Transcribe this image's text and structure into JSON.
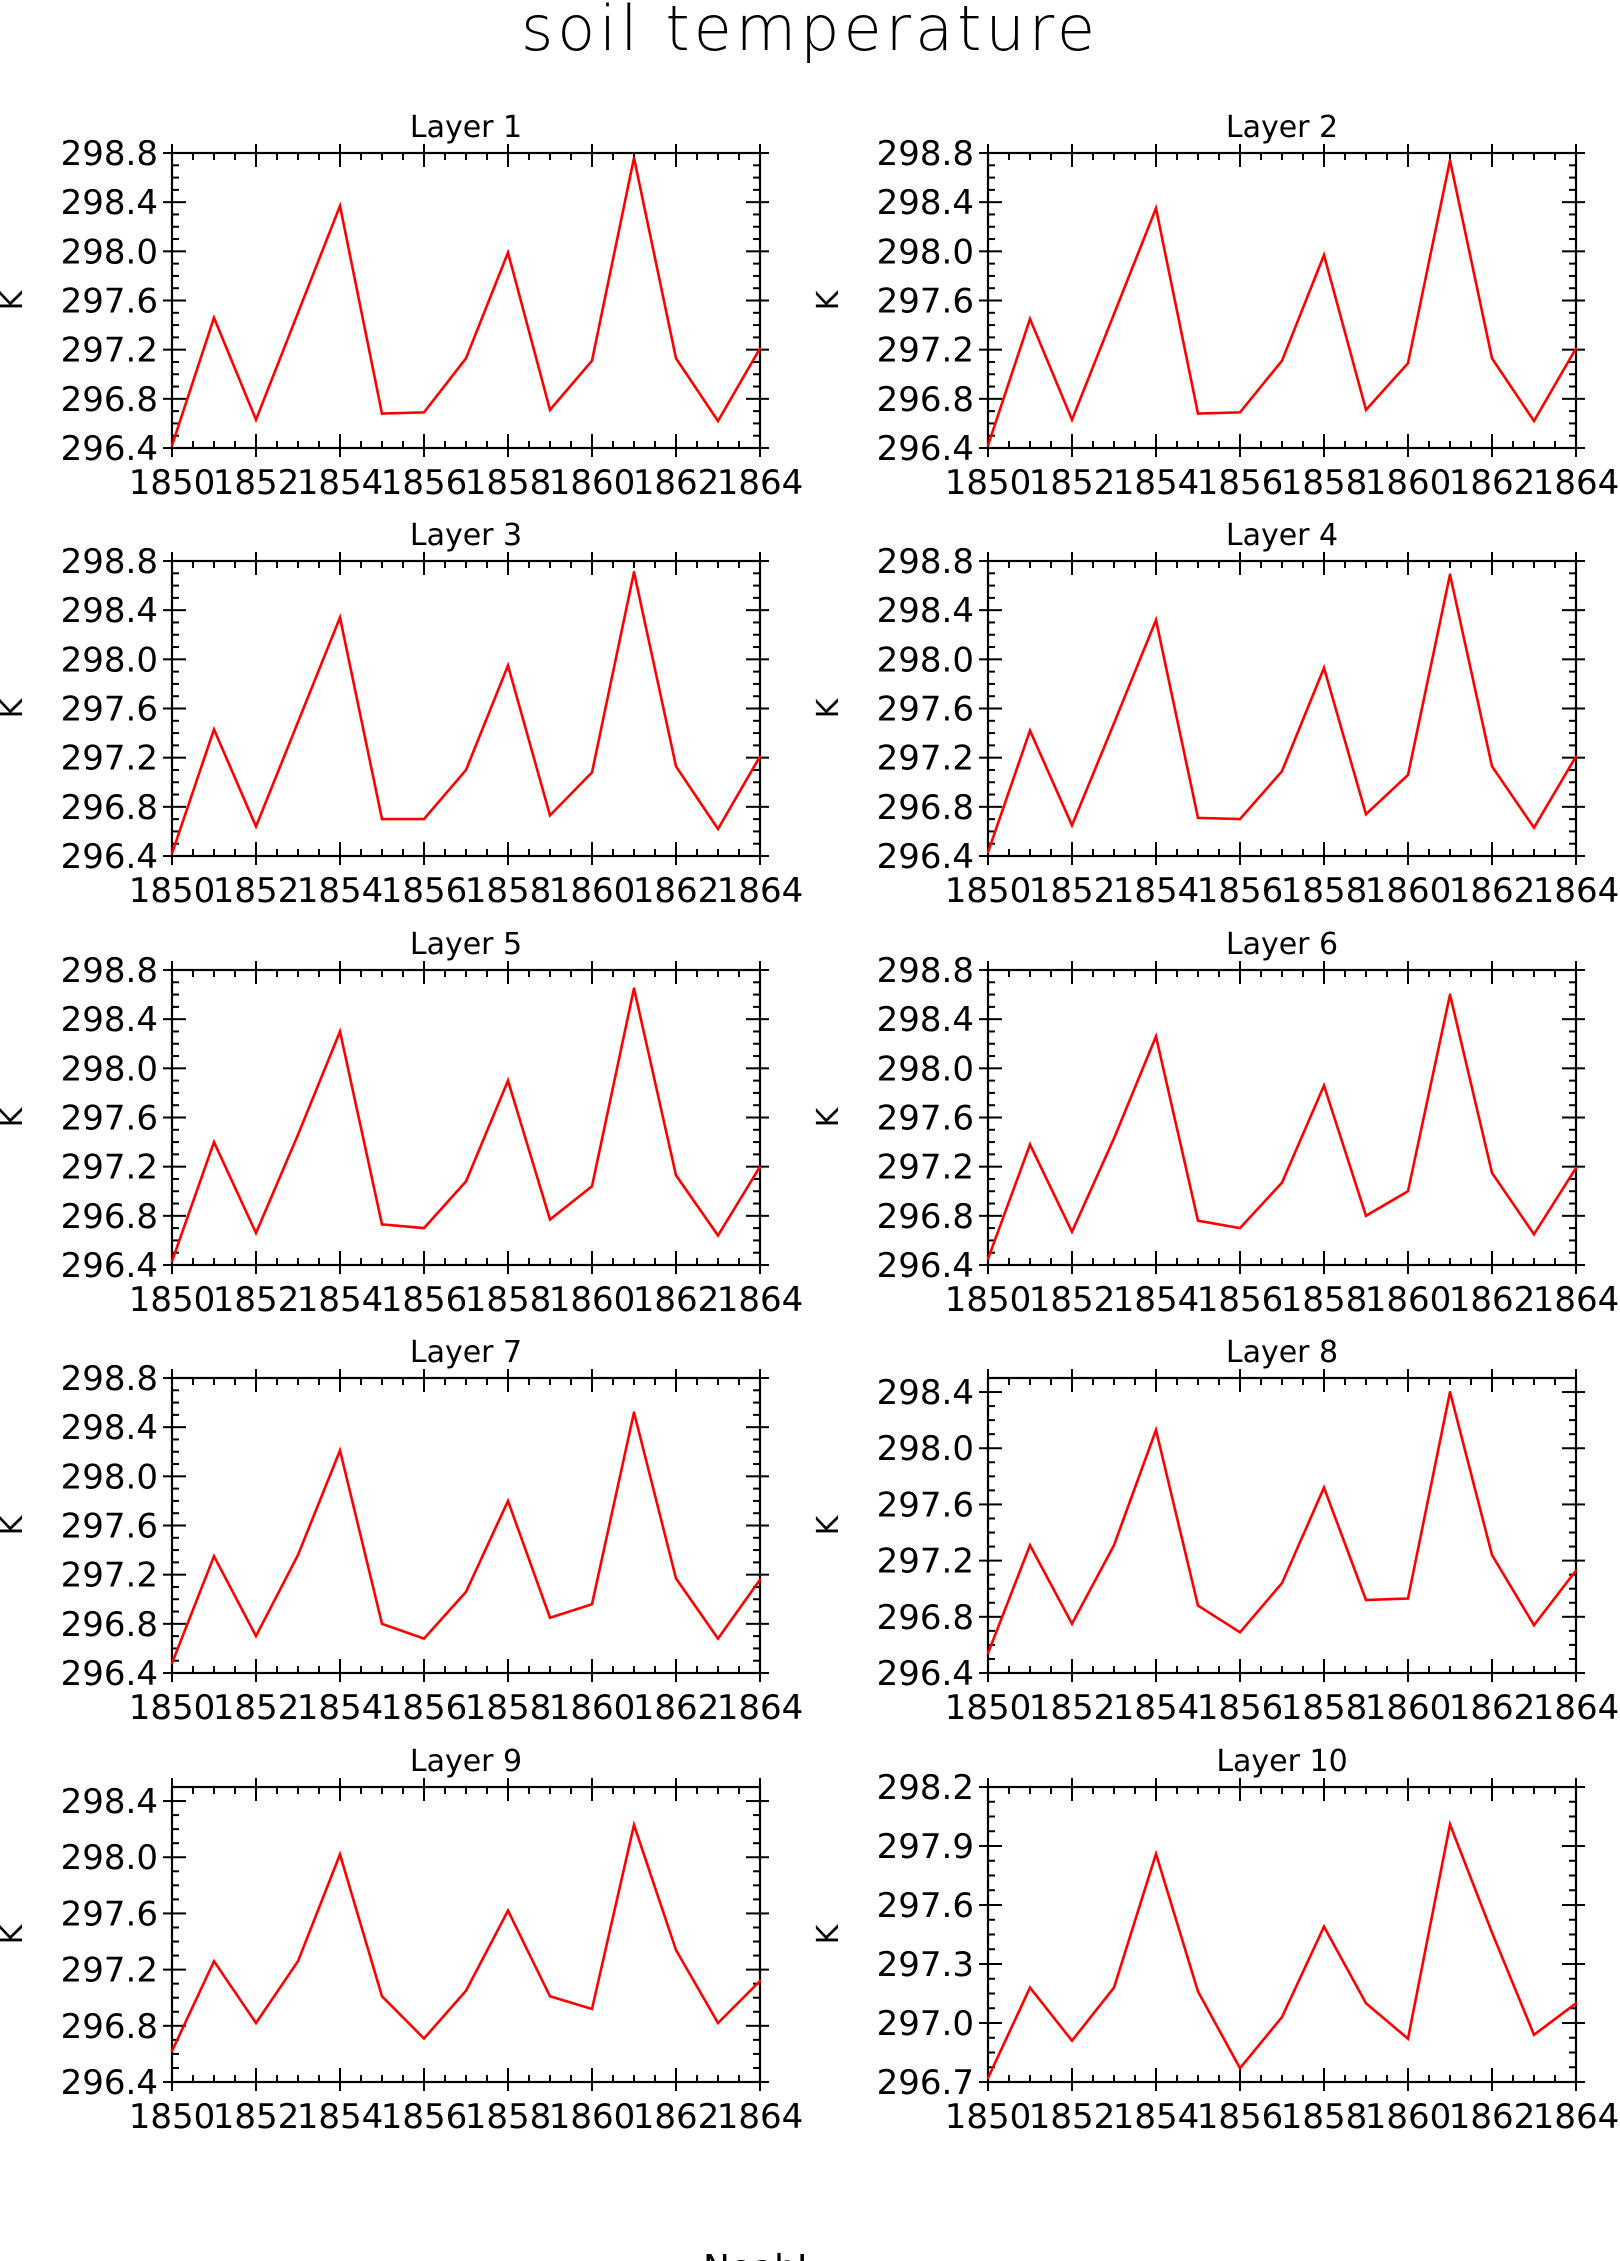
{
  "figure": {
    "title": "soil temperature",
    "footer": "NoahL",
    "line_color": "#ff0000"
  },
  "chart_data": [
    {
      "type": "line",
      "title": "Layer 1",
      "ylabel": "K",
      "xlabel": "",
      "x_tick_labels": [
        "1850",
        "1852",
        "1854",
        "1856",
        "1858",
        "1860",
        "1862",
        "1864"
      ],
      "y_tick_labels": [
        "296.4",
        "296.8",
        "297.2",
        "297.6",
        "298.0",
        "298.4",
        "298.8"
      ],
      "xlim": [
        1850,
        1864
      ],
      "ylim": [
        296.4,
        298.8
      ],
      "grid": false,
      "series": [
        {
          "x": [
            1850,
            1851,
            1852,
            1853,
            1854,
            1855,
            1856,
            1857,
            1858,
            1859,
            1860,
            1861,
            1862,
            1863,
            1864
          ],
          "y": [
            296.42,
            297.46,
            296.63,
            297.5,
            298.37,
            296.68,
            296.69,
            297.13,
            297.99,
            296.71,
            297.11,
            298.76,
            297.13,
            296.62,
            297.21
          ]
        }
      ]
    },
    {
      "type": "line",
      "title": "Layer 2",
      "ylabel": "K",
      "xlabel": "",
      "x_tick_labels": [
        "1850",
        "1852",
        "1854",
        "1856",
        "1858",
        "1860",
        "1862",
        "1864"
      ],
      "y_tick_labels": [
        "296.4",
        "296.8",
        "297.2",
        "297.6",
        "298.0",
        "298.4",
        "298.8"
      ],
      "xlim": [
        1850,
        1864
      ],
      "ylim": [
        296.4,
        298.8
      ],
      "grid": false,
      "series": [
        {
          "x": [
            1850,
            1851,
            1852,
            1853,
            1854,
            1855,
            1856,
            1857,
            1858,
            1859,
            1860,
            1861,
            1862,
            1863,
            1864
          ],
          "y": [
            296.42,
            297.45,
            296.63,
            297.49,
            298.35,
            296.68,
            296.69,
            297.11,
            297.97,
            296.71,
            297.09,
            298.74,
            297.13,
            296.62,
            297.21
          ]
        }
      ]
    },
    {
      "type": "line",
      "title": "Layer 3",
      "ylabel": "K",
      "xlabel": "",
      "x_tick_labels": [
        "1850",
        "1852",
        "1854",
        "1856",
        "1858",
        "1860",
        "1862",
        "1864"
      ],
      "y_tick_labels": [
        "296.4",
        "296.8",
        "297.2",
        "297.6",
        "298.0",
        "298.4",
        "298.8"
      ],
      "xlim": [
        1850,
        1864
      ],
      "ylim": [
        296.4,
        298.8
      ],
      "grid": false,
      "series": [
        {
          "x": [
            1850,
            1851,
            1852,
            1853,
            1854,
            1855,
            1856,
            1857,
            1858,
            1859,
            1860,
            1861,
            1862,
            1863,
            1864
          ],
          "y": [
            296.42,
            297.43,
            296.64,
            297.49,
            298.34,
            296.7,
            296.7,
            297.1,
            297.95,
            296.73,
            297.08,
            298.71,
            297.13,
            296.62,
            297.21
          ]
        }
      ]
    },
    {
      "type": "line",
      "title": "Layer 4",
      "ylabel": "K",
      "xlabel": "",
      "x_tick_labels": [
        "1850",
        "1852",
        "1854",
        "1856",
        "1858",
        "1860",
        "1862",
        "1864"
      ],
      "y_tick_labels": [
        "296.4",
        "296.8",
        "297.2",
        "297.6",
        "298.0",
        "298.4",
        "298.8"
      ],
      "xlim": [
        1850,
        1864
      ],
      "ylim": [
        296.4,
        298.8
      ],
      "grid": false,
      "series": [
        {
          "x": [
            1850,
            1851,
            1852,
            1853,
            1854,
            1855,
            1856,
            1857,
            1858,
            1859,
            1860,
            1861,
            1862,
            1863,
            1864
          ],
          "y": [
            296.43,
            297.42,
            296.65,
            297.48,
            298.32,
            296.71,
            296.7,
            297.09,
            297.93,
            296.74,
            297.06,
            298.69,
            297.13,
            296.63,
            297.21
          ]
        }
      ]
    },
    {
      "type": "line",
      "title": "Layer 5",
      "ylabel": "K",
      "xlabel": "",
      "x_tick_labels": [
        "1850",
        "1852",
        "1854",
        "1856",
        "1858",
        "1860",
        "1862",
        "1864"
      ],
      "y_tick_labels": [
        "296.4",
        "296.8",
        "297.2",
        "297.6",
        "298.0",
        "298.4",
        "298.8"
      ],
      "xlim": [
        1850,
        1864
      ],
      "ylim": [
        296.4,
        298.8
      ],
      "grid": false,
      "series": [
        {
          "x": [
            1850,
            1851,
            1852,
            1853,
            1854,
            1855,
            1856,
            1857,
            1858,
            1859,
            1860,
            1861,
            1862,
            1863,
            1864
          ],
          "y": [
            296.43,
            297.4,
            296.66,
            297.46,
            298.3,
            296.73,
            296.7,
            297.08,
            297.9,
            296.77,
            297.04,
            298.65,
            297.13,
            296.64,
            297.2
          ]
        }
      ]
    },
    {
      "type": "line",
      "title": "Layer 6",
      "ylabel": "K",
      "xlabel": "",
      "x_tick_labels": [
        "1850",
        "1852",
        "1854",
        "1856",
        "1858",
        "1860",
        "1862",
        "1864"
      ],
      "y_tick_labels": [
        "296.4",
        "296.8",
        "297.2",
        "297.6",
        "298.0",
        "298.4",
        "298.8"
      ],
      "xlim": [
        1850,
        1864
      ],
      "ylim": [
        296.4,
        298.8
      ],
      "grid": false,
      "series": [
        {
          "x": [
            1850,
            1851,
            1852,
            1853,
            1854,
            1855,
            1856,
            1857,
            1858,
            1859,
            1860,
            1861,
            1862,
            1863,
            1864
          ],
          "y": [
            296.45,
            297.38,
            296.67,
            297.43,
            298.26,
            296.76,
            296.7,
            297.07,
            297.86,
            296.8,
            297.0,
            298.6,
            297.15,
            296.65,
            297.19
          ]
        }
      ]
    },
    {
      "type": "line",
      "title": "Layer 7",
      "ylabel": "K",
      "xlabel": "",
      "x_tick_labels": [
        "1850",
        "1852",
        "1854",
        "1856",
        "1858",
        "1860",
        "1862",
        "1864"
      ],
      "y_tick_labels": [
        "296.4",
        "296.8",
        "297.2",
        "297.6",
        "298.0",
        "298.4",
        "298.8"
      ],
      "xlim": [
        1850,
        1864
      ],
      "ylim": [
        296.4,
        298.8
      ],
      "grid": false,
      "series": [
        {
          "x": [
            1850,
            1851,
            1852,
            1853,
            1854,
            1855,
            1856,
            1857,
            1858,
            1859,
            1860,
            1861,
            1862,
            1863,
            1864
          ],
          "y": [
            296.48,
            297.35,
            296.7,
            297.36,
            298.21,
            296.8,
            296.68,
            297.06,
            297.8,
            296.85,
            296.96,
            298.52,
            297.17,
            296.68,
            297.16
          ]
        }
      ]
    },
    {
      "type": "line",
      "title": "Layer 8",
      "ylabel": "K",
      "xlabel": "",
      "x_tick_labels": [
        "1850",
        "1852",
        "1854",
        "1856",
        "1858",
        "1860",
        "1862",
        "1864"
      ],
      "y_tick_labels": [
        "296.4",
        "296.8",
        "297.2",
        "297.6",
        "298.0",
        "298.4"
      ],
      "xlim": [
        1850,
        1864
      ],
      "ylim": [
        296.4,
        298.5
      ],
      "grid": false,
      "series": [
        {
          "x": [
            1850,
            1851,
            1852,
            1853,
            1854,
            1855,
            1856,
            1857,
            1858,
            1859,
            1860,
            1861,
            1862,
            1863,
            1864
          ],
          "y": [
            296.54,
            297.31,
            296.75,
            297.31,
            298.13,
            296.88,
            296.69,
            297.04,
            297.72,
            296.92,
            296.93,
            298.4,
            297.24,
            296.74,
            297.13
          ]
        }
      ]
    },
    {
      "type": "line",
      "title": "Layer 9",
      "ylabel": "K",
      "xlabel": "",
      "x_tick_labels": [
        "1850",
        "1852",
        "1854",
        "1856",
        "1858",
        "1860",
        "1862",
        "1864"
      ],
      "y_tick_labels": [
        "296.4",
        "296.8",
        "297.2",
        "297.6",
        "298.0",
        "298.4"
      ],
      "xlim": [
        1850,
        1864
      ],
      "ylim": [
        296.4,
        298.5
      ],
      "grid": false,
      "series": [
        {
          "x": [
            1850,
            1851,
            1852,
            1853,
            1854,
            1855,
            1856,
            1857,
            1858,
            1859,
            1860,
            1861,
            1862,
            1863,
            1864
          ],
          "y": [
            296.62,
            297.26,
            296.82,
            297.26,
            298.02,
            297.01,
            296.71,
            297.05,
            297.62,
            297.01,
            296.92,
            298.23,
            297.34,
            296.82,
            297.12
          ]
        }
      ]
    },
    {
      "type": "line",
      "title": "Layer 10",
      "ylabel": "K",
      "xlabel": "",
      "x_tick_labels": [
        "1850",
        "1852",
        "1854",
        "1856",
        "1858",
        "1860",
        "1862",
        "1864"
      ],
      "y_tick_labels": [
        "296.7",
        "297.0",
        "297.3",
        "297.6",
        "297.9",
        "298.2"
      ],
      "xlim": [
        1850,
        1864
      ],
      "ylim": [
        296.7,
        298.2
      ],
      "grid": false,
      "series": [
        {
          "x": [
            1850,
            1851,
            1852,
            1853,
            1854,
            1855,
            1856,
            1857,
            1858,
            1859,
            1860,
            1861,
            1862,
            1863,
            1864
          ],
          "y": [
            296.72,
            297.18,
            296.91,
            297.18,
            297.86,
            297.16,
            296.77,
            297.03,
            297.49,
            297.1,
            296.92,
            298.01,
            297.46,
            296.94,
            297.1
          ]
        }
      ]
    }
  ]
}
